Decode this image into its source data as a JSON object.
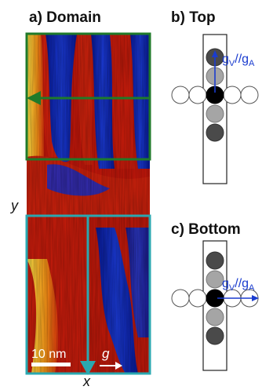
{
  "panels": {
    "domain": {
      "label": "a) Domain",
      "scale_text": "10 nm",
      "g_text": "g",
      "y_label": "y",
      "x_label": "x"
    },
    "top": {
      "label": "b) Top",
      "annot_gv": "g",
      "annot_gv_sub": "V",
      "annot_sep": "//",
      "annot_ga": "g",
      "annot_ga_sub": "A"
    },
    "bottom": {
      "label": "c) Bottom",
      "annot_gv": "g",
      "annot_gv_sub": "V",
      "annot_sep": "//",
      "annot_ga": "g",
      "annot_ga_sub": "A"
    }
  },
  "colors": {
    "green_box": "#1f7a2a",
    "cyan_box": "#2aa8b0",
    "arrow_blue": "#1a3ccf",
    "red": "#d11a0c",
    "blue": "#1322c9",
    "yellow": "#ffe21a"
  }
}
